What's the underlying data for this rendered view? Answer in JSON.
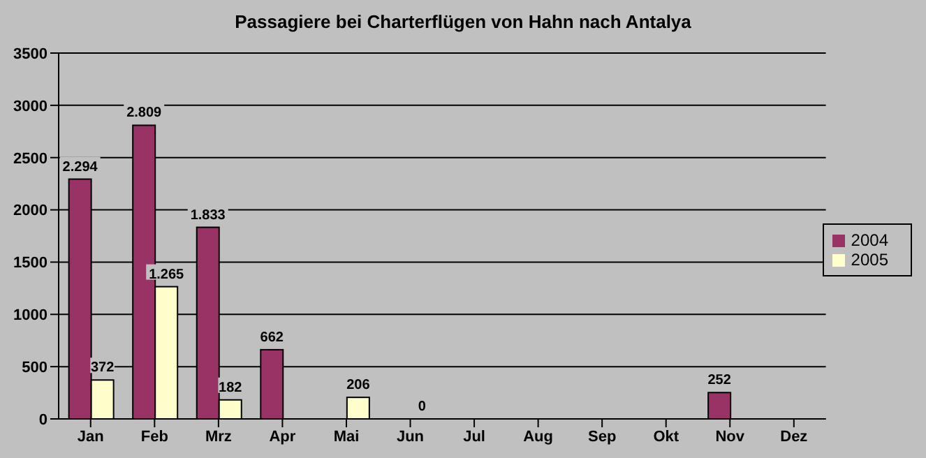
{
  "chart_data": {
    "type": "bar",
    "title": "Passagiere bei Charterflügen von Hahn nach Antalya",
    "categories": [
      "Jan",
      "Feb",
      "Mrz",
      "Apr",
      "Mai",
      "Jun",
      "Jul",
      "Aug",
      "Sep",
      "Okt",
      "Nov",
      "Dez"
    ],
    "series": [
      {
        "name": "2004",
        "color": "#993366",
        "values": [
          2294,
          2809,
          1833,
          662,
          null,
          null,
          null,
          null,
          null,
          null,
          252,
          null
        ],
        "value_labels": [
          "2.294",
          "2.809",
          "1.833",
          "662",
          null,
          null,
          null,
          null,
          null,
          null,
          "252",
          null
        ]
      },
      {
        "name": "2005",
        "color": "#ffffcc",
        "values": [
          372,
          1265,
          182,
          null,
          206,
          0,
          null,
          null,
          null,
          null,
          null,
          null
        ],
        "value_labels": [
          "372",
          "1.265",
          "182",
          null,
          "206",
          "0",
          null,
          null,
          null,
          null,
          null,
          null
        ]
      }
    ],
    "ylim": [
      0,
      3500
    ],
    "yticks": [
      0,
      500,
      1000,
      1500,
      2000,
      2500,
      3000,
      3500
    ],
    "grid": "y",
    "legend": "right"
  }
}
